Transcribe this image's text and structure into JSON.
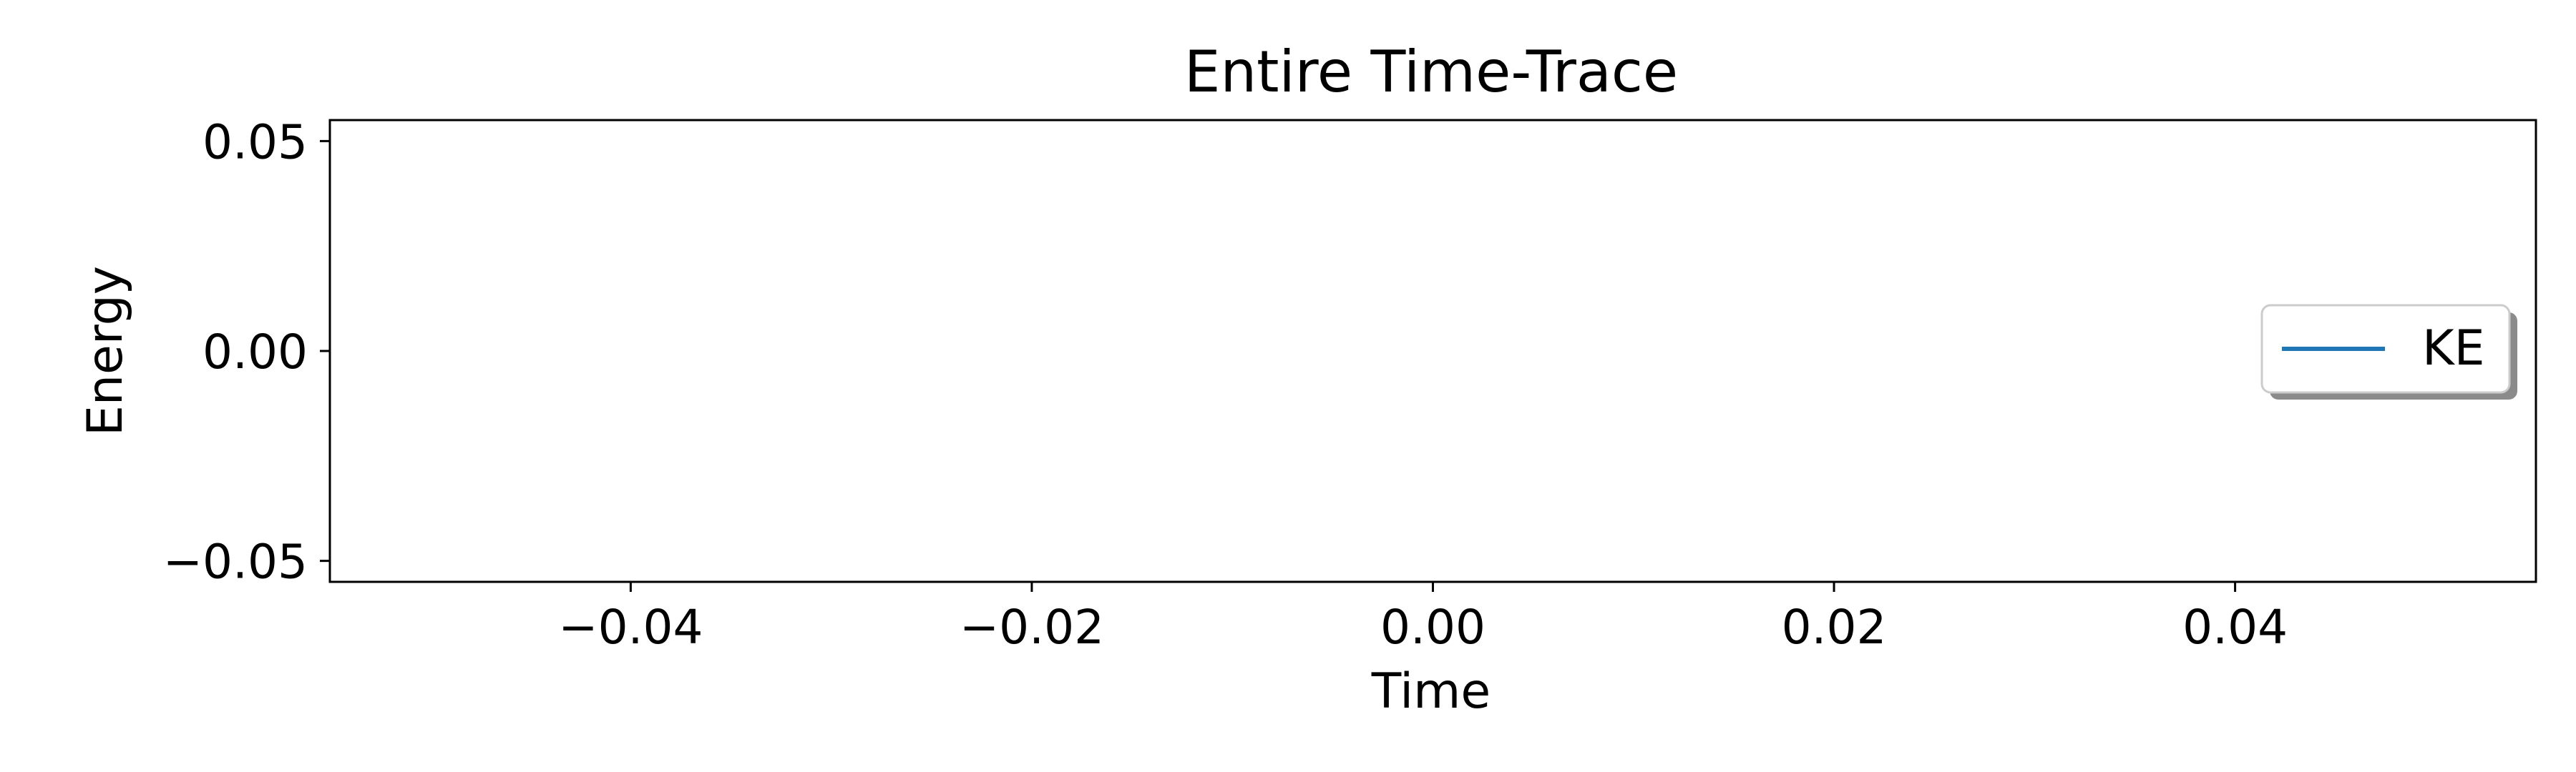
{
  "chart_data": {
    "type": "line",
    "title": "Entire Time-Trace",
    "xlabel": "Time",
    "ylabel": "Energy",
    "xlim": [
      -0.055,
      0.055
    ],
    "ylim": [
      -0.055,
      0.055
    ],
    "x_ticks": [
      -0.04,
      -0.02,
      0.0,
      0.02,
      0.04
    ],
    "x_tick_labels": [
      "−0.04",
      "−0.02",
      "0.00",
      "0.02",
      "0.04"
    ],
    "y_ticks": [
      -0.05,
      0.0,
      0.05
    ],
    "y_tick_labels": [
      "−0.05",
      "0.00",
      "0.05"
    ],
    "grid": false,
    "legend_position": "right",
    "series": [
      {
        "name": "KE",
        "color": "#1f77b4",
        "x": [],
        "y": []
      }
    ]
  }
}
